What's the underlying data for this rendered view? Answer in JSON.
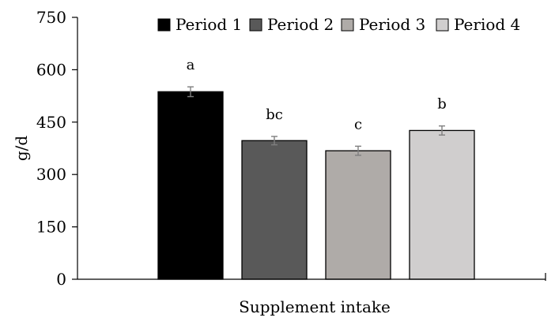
{
  "chart_data": {
    "type": "bar",
    "title": "",
    "xlabel": "Supplement intake",
    "ylabel": "g/d",
    "ylim": [
      0,
      750
    ],
    "yticks": [
      0,
      150,
      300,
      450,
      600,
      750
    ],
    "legend_position": "top",
    "grid": false,
    "series": [
      {
        "name": "Period 1",
        "value": 537,
        "error": 14,
        "sig": "a",
        "color": "#000000"
      },
      {
        "name": "Period 2",
        "value": 397,
        "error": 12,
        "sig": "bc",
        "color": "#595959"
      },
      {
        "name": "Period 3",
        "value": 368,
        "error": 13,
        "sig": "c",
        "color": "#afaba8"
      },
      {
        "name": "Period 4",
        "value": 426,
        "error": 13,
        "sig": "b",
        "color": "#d0cece"
      }
    ]
  }
}
